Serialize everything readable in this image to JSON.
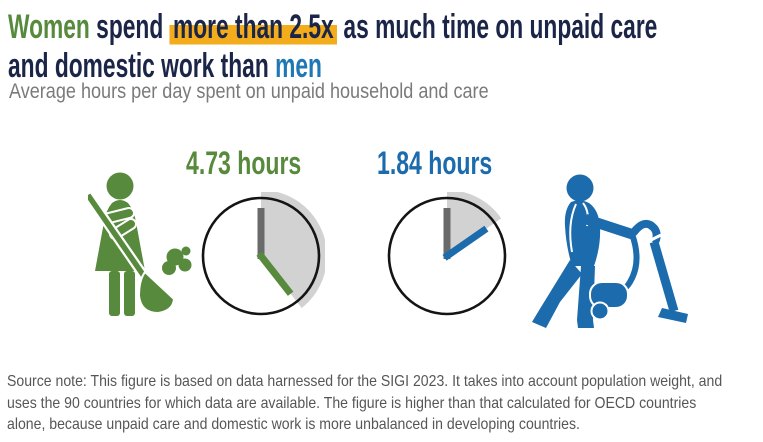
{
  "title": {
    "women": "Women",
    "pre_highlight": " spend ",
    "highlight": "more than 2.5x",
    "post_highlight": " as much time on unpaid care",
    "line2_pre": "and domestic work than ",
    "men": "men"
  },
  "subtitle": "Average hours per day spent on unpaid household and care",
  "colors": {
    "green": "#578a3c",
    "blue": "#1c6bad",
    "men_blue": "#1f78b5",
    "navy": "#1b2547",
    "highlight": "#f3ac1b",
    "wedge_gray": "#d2d2d2",
    "hand_gray": "#6a6a6a",
    "subtitle_gray": "#7a7a7a",
    "note_gray": "#565656"
  },
  "chart_data": {
    "type": "pictorial-clock-infographic",
    "title": "Women spend more than 2.5x as much time on unpaid care and domestic work than men",
    "subtitle": "Average hours per day spent on unpaid household and care",
    "unit": "hours per day",
    "clock_full_scale_hours": 12,
    "ratio_annotation": "more than 2.5x",
    "categories": [
      "Women",
      "Men"
    ],
    "series": [
      {
        "name": "Women",
        "hours": 4.73,
        "value_label": "4.73 hours",
        "color": "#578a3c",
        "icon": "woman-sweeping-icon"
      },
      {
        "name": "Men",
        "hours": 1.84,
        "value_label": "1.84 hours",
        "color": "#1c6bad",
        "icon": "man-vacuuming-icon"
      }
    ]
  },
  "source_note": {
    "lines": [
      "Source note: This figure is based on data harnessed for the SIGI 2023. It takes into account population weight, and",
      "uses the 90 countries for which data are available. The figure is higher than that calculated for OECD countries",
      "alone, because unpaid care and domestic work is more unbalanced in developing countries."
    ]
  }
}
